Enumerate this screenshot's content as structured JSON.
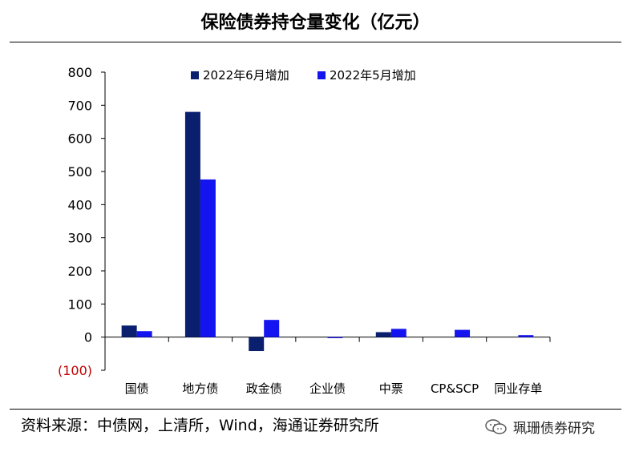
{
  "title": "保险债券持仓量变化（亿元）",
  "source_note": "资料来源：中债网，上清所，Wind，海通证券研究所",
  "watermark": "珮珊债券研究",
  "colors": {
    "series1": "#0a1f6e",
    "series2": "#1414f0",
    "negative_tick": "#c00000"
  },
  "chart_data": {
    "type": "bar",
    "categories": [
      "国债",
      "地方债",
      "政金债",
      "企业债",
      "中票",
      "CP&SCP",
      "同业存单"
    ],
    "series": [
      {
        "name": "2022年6月增加",
        "values": [
          35,
          680,
          -42,
          0,
          15,
          0,
          0
        ]
      },
      {
        "name": "2022年5月增加",
        "values": [
          18,
          476,
          52,
          -3,
          25,
          22,
          6
        ]
      }
    ],
    "ylim": [
      -100,
      800
    ],
    "yticks": [
      800,
      700,
      600,
      500,
      400,
      300,
      200,
      100,
      0,
      -100
    ],
    "ytick_labels": [
      "800",
      "700",
      "600",
      "500",
      "400",
      "300",
      "200",
      "100",
      "0",
      "(100)"
    ],
    "legend_position": "top",
    "grid": false
  }
}
